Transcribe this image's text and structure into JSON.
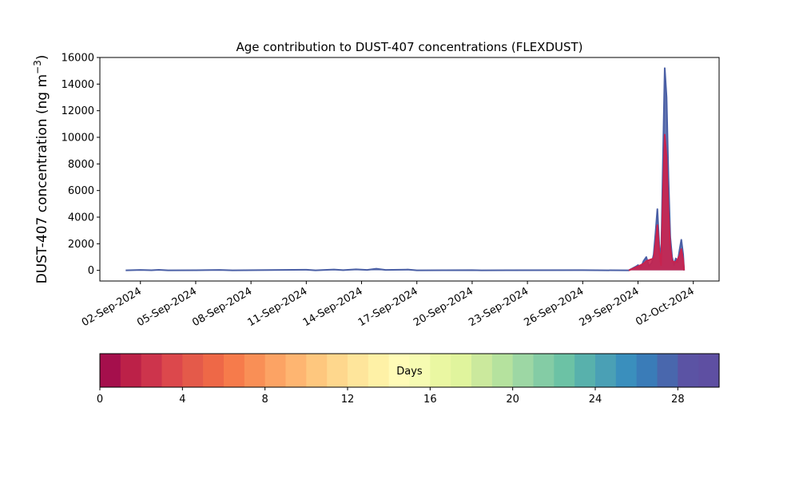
{
  "chart_data": {
    "type": "area",
    "title": "Age contribution to DUST-407 concentrations (FLEXDUST)",
    "ylabel": "DUST-407 concentration (ng m",
    "ylabel_sup": "−3",
    "ylabel_close": ")",
    "xlabel": "",
    "ylim": [
      -800,
      16000
    ],
    "yticks": [
      0,
      2000,
      4000,
      6000,
      8000,
      10000,
      12000,
      14000,
      16000
    ],
    "xlim_days": [
      -2.2,
      31.4
    ],
    "xticks": [
      {
        "label": "02-Sep-2024",
        "day": 0
      },
      {
        "label": "05-Sep-2024",
        "day": 3
      },
      {
        "label": "08-Sep-2024",
        "day": 6
      },
      {
        "label": "11-Sep-2024",
        "day": 9
      },
      {
        "label": "14-Sep-2024",
        "day": 12
      },
      {
        "label": "17-Sep-2024",
        "day": 15
      },
      {
        "label": "20-Sep-2024",
        "day": 18
      },
      {
        "label": "23-Sep-2024",
        "day": 21
      },
      {
        "label": "26-Sep-2024",
        "day": 24
      },
      {
        "label": "29-Sep-2024",
        "day": 27
      },
      {
        "label": "02-Oct-2024",
        "day": 30
      }
    ],
    "series_total": {
      "name": "",
      "color": "#4a5fa5",
      "points": [
        {
          "day": -0.8,
          "y": 0
        },
        {
          "day": 0.0,
          "y": 30
        },
        {
          "day": 0.6,
          "y": 10
        },
        {
          "day": 1.0,
          "y": 40
        },
        {
          "day": 1.5,
          "y": 5
        },
        {
          "day": 3.0,
          "y": 10
        },
        {
          "day": 4.3,
          "y": 30
        },
        {
          "day": 5.0,
          "y": 5
        },
        {
          "day": 9.0,
          "y": 50
        },
        {
          "day": 9.5,
          "y": 5
        },
        {
          "day": 10.5,
          "y": 60
        },
        {
          "day": 11.0,
          "y": 20
        },
        {
          "day": 11.7,
          "y": 80
        },
        {
          "day": 12.3,
          "y": 30
        },
        {
          "day": 12.8,
          "y": 120
        },
        {
          "day": 13.3,
          "y": 30
        },
        {
          "day": 14.5,
          "y": 60
        },
        {
          "day": 15.0,
          "y": 5
        },
        {
          "day": 18.0,
          "y": 20
        },
        {
          "day": 18.5,
          "y": 5
        },
        {
          "day": 24.0,
          "y": 15
        },
        {
          "day": 26.5,
          "y": 0
        },
        {
          "day": 26.7,
          "y": 150
        },
        {
          "day": 26.9,
          "y": 300
        },
        {
          "day": 27.0,
          "y": 400
        },
        {
          "day": 27.15,
          "y": 200
        },
        {
          "day": 27.3,
          "y": 700
        },
        {
          "day": 27.45,
          "y": 1000
        },
        {
          "day": 27.6,
          "y": 300
        },
        {
          "day": 27.75,
          "y": 600
        },
        {
          "day": 27.85,
          "y": 1200
        },
        {
          "day": 27.95,
          "y": 2800
        },
        {
          "day": 28.05,
          "y": 4600
        },
        {
          "day": 28.15,
          "y": 2000
        },
        {
          "day": 28.25,
          "y": 600
        },
        {
          "day": 28.35,
          "y": 8000
        },
        {
          "day": 28.45,
          "y": 15200
        },
        {
          "day": 28.55,
          "y": 13000
        },
        {
          "day": 28.65,
          "y": 7000
        },
        {
          "day": 28.75,
          "y": 2500
        },
        {
          "day": 28.85,
          "y": 1000
        },
        {
          "day": 28.95,
          "y": 400
        },
        {
          "day": 29.05,
          "y": 900
        },
        {
          "day": 29.15,
          "y": 600
        },
        {
          "day": 29.25,
          "y": 1500
        },
        {
          "day": 29.35,
          "y": 2300
        },
        {
          "day": 29.45,
          "y": 1200
        },
        {
          "day": 29.5,
          "y": 0
        }
      ]
    },
    "series_young": {
      "name": "",
      "color": "#c8224e",
      "points": [
        {
          "day": 26.5,
          "y": 0
        },
        {
          "day": 27.0,
          "y": 300
        },
        {
          "day": 27.3,
          "y": 500
        },
        {
          "day": 27.45,
          "y": 700
        },
        {
          "day": 27.85,
          "y": 900
        },
        {
          "day": 27.95,
          "y": 2000
        },
        {
          "day": 28.05,
          "y": 3400
        },
        {
          "day": 28.15,
          "y": 1500
        },
        {
          "day": 28.25,
          "y": 400
        },
        {
          "day": 28.35,
          "y": 5500
        },
        {
          "day": 28.45,
          "y": 10200
        },
        {
          "day": 28.55,
          "y": 8500
        },
        {
          "day": 28.65,
          "y": 4500
        },
        {
          "day": 28.75,
          "y": 1800
        },
        {
          "day": 28.85,
          "y": 700
        },
        {
          "day": 29.05,
          "y": 600
        },
        {
          "day": 29.25,
          "y": 1100
        },
        {
          "day": 29.35,
          "y": 1600
        },
        {
          "day": 29.45,
          "y": 800
        },
        {
          "day": 29.5,
          "y": 0
        }
      ]
    },
    "colorbar": {
      "label": "Days",
      "min": 0,
      "max": 30,
      "ticks": [
        0,
        4,
        8,
        12,
        16,
        20,
        24,
        28
      ],
      "colors": [
        "#a50f4c",
        "#bc2148",
        "#cd344c",
        "#dc484c",
        "#e45a4a",
        "#ee6847",
        "#f67b4b",
        "#f98f56",
        "#fca364",
        "#feb571",
        "#fec77e",
        "#fed78d",
        "#fee59b",
        "#fef1a6",
        "#fffbb7",
        "#f6fbb2",
        "#eaf7a2",
        "#e0f49d",
        "#cbe99d",
        "#b5e29e",
        "#9dd7a4",
        "#84cca5",
        "#6cc2a5",
        "#58b1ac",
        "#4aa0b5",
        "#3a8fbd",
        "#3a7cb8",
        "#4967ad",
        "#5b53a4",
        "#5e4fa2"
      ]
    }
  }
}
